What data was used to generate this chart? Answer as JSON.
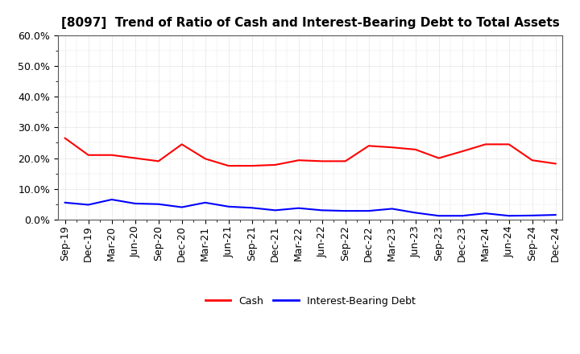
{
  "title": "[8097]  Trend of Ratio of Cash and Interest-Bearing Debt to Total Assets",
  "x_labels": [
    "Sep-19",
    "Dec-19",
    "Mar-20",
    "Jun-20",
    "Sep-20",
    "Dec-20",
    "Mar-21",
    "Jun-21",
    "Sep-21",
    "Dec-21",
    "Mar-22",
    "Jun-22",
    "Sep-22",
    "Dec-22",
    "Mar-23",
    "Jun-23",
    "Sep-23",
    "Dec-23",
    "Mar-24",
    "Jun-24",
    "Sep-24",
    "Dec-24"
  ],
  "cash": [
    0.265,
    0.21,
    0.21,
    0.2,
    0.19,
    0.245,
    0.198,
    0.175,
    0.175,
    0.178,
    0.193,
    0.19,
    0.19,
    0.24,
    0.235,
    0.228,
    0.2,
    0.222,
    0.245,
    0.245,
    0.193,
    0.182
  ],
  "ibd": [
    0.055,
    0.048,
    0.065,
    0.052,
    0.05,
    0.04,
    0.055,
    0.042,
    0.038,
    0.03,
    0.037,
    0.03,
    0.028,
    0.028,
    0.035,
    0.022,
    0.012,
    0.012,
    0.02,
    0.012,
    0.013,
    0.015
  ],
  "cash_color": "#ff0000",
  "ibd_color": "#0000ff",
  "ylim": [
    0.0,
    0.6
  ],
  "yticks": [
    0.0,
    0.1,
    0.2,
    0.3,
    0.4,
    0.5,
    0.6
  ],
  "background_color": "#ffffff",
  "grid_color": "#bbbbbb",
  "legend_labels": [
    "Cash",
    "Interest-Bearing Debt"
  ],
  "title_fontsize": 11,
  "tick_fontsize": 9
}
